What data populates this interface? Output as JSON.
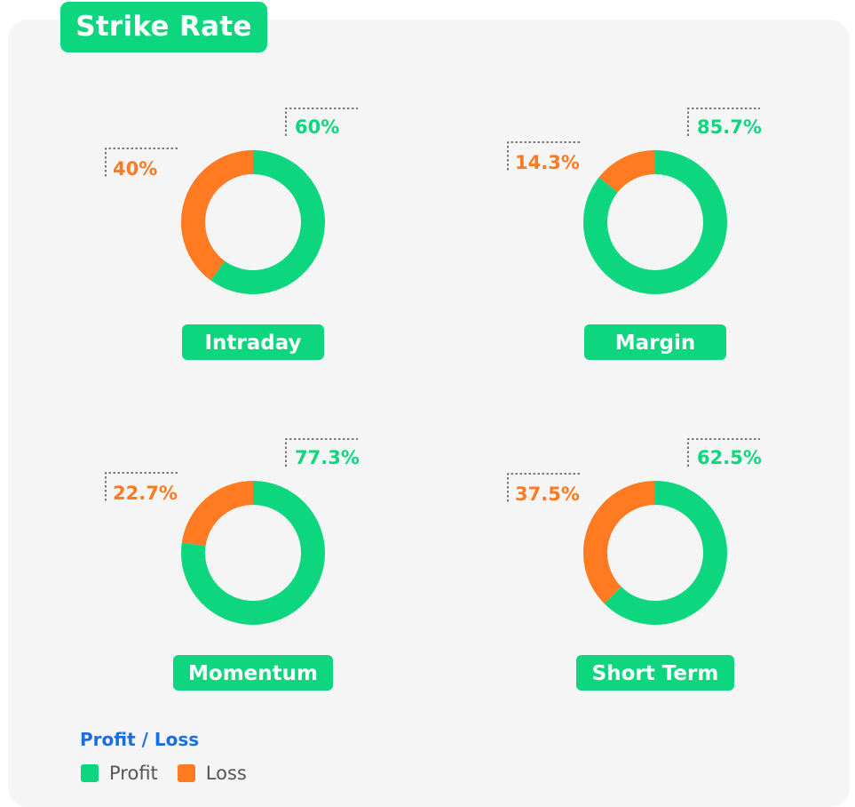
{
  "header": {
    "title": "Strike Rate"
  },
  "colors": {
    "profit": "#0ed67e",
    "loss": "#ff7a21",
    "label_bg": "#0ed67e",
    "legend_title": "#1a6fe0",
    "panel_bg": "#f5f5f5"
  },
  "legend": {
    "title": "Profit / Loss",
    "items": [
      {
        "label": "Profit",
        "color": "#0ed67e"
      },
      {
        "label": "Loss",
        "color": "#ff7a21"
      }
    ]
  },
  "chart_data": [
    {
      "type": "pie",
      "title": "Intraday",
      "categories": [
        "Profit",
        "Loss"
      ],
      "values": [
        60,
        40
      ],
      "value_labels": [
        "60%",
        "40%"
      ]
    },
    {
      "type": "pie",
      "title": "Margin",
      "categories": [
        "Profit",
        "Loss"
      ],
      "values": [
        85.7,
        14.3
      ],
      "value_labels": [
        "85.7%",
        "14.3%"
      ]
    },
    {
      "type": "pie",
      "title": "Momentum",
      "categories": [
        "Profit",
        "Loss"
      ],
      "values": [
        77.3,
        22.7
      ],
      "value_labels": [
        "77.3%",
        "22.7%"
      ]
    },
    {
      "type": "pie",
      "title": "Short Term",
      "categories": [
        "Profit",
        "Loss"
      ],
      "values": [
        62.5,
        37.5
      ],
      "value_labels": [
        "62.5%",
        "37.5%"
      ]
    }
  ]
}
